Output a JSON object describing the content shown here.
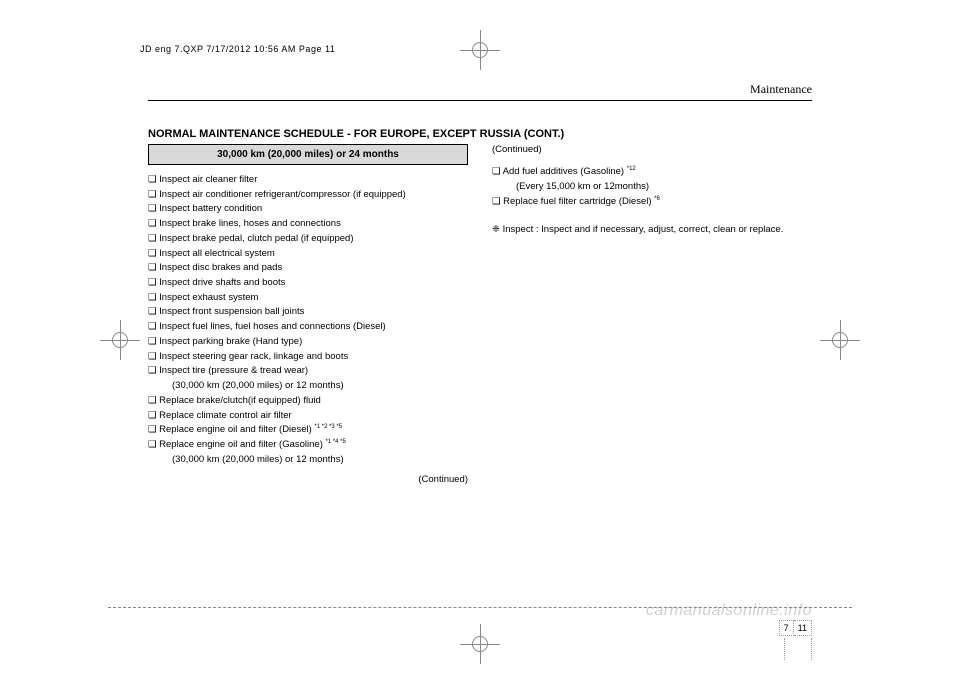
{
  "header_stamp": "JD eng 7.QXP  7/17/2012  10:56 AM  Page 11",
  "section_label": "Maintenance",
  "title": "NORMAL MAINTENANCE SCHEDULE - FOR EUROPE, EXCEPT RUSSIA (CONT.)",
  "box_header": "30,000 km (20,000 miles) or 24 months",
  "left_items": [
    "❑ Inspect air cleaner filter",
    "❑ Inspect air conditioner refrigerant/compressor (if equipped)",
    "❑ Inspect battery condition",
    "❑ Inspect brake lines, hoses and connections",
    "❑ Inspect brake pedal, clutch pedal (if equipped)",
    "❑ Inspect all electrical system",
    "❑ Inspect disc brakes and pads",
    "❑ Inspect drive shafts and boots",
    "❑ Inspect exhaust system",
    "❑ Inspect front suspension ball joints",
    "❑ Inspect fuel lines, fuel hoses and connections (Diesel)",
    "❑ Inspect parking brake (Hand type)",
    "❑ Inspect steering gear rack, linkage and boots",
    "❑ Inspect tire (pressure & tread wear)",
    "   (30,000 km (20,000 miles) or 12 months)",
    "❑ Replace brake/clutch(if equipped) fluid",
    "❑ Replace climate control air filter"
  ],
  "left_item_diesel_prefix": "❑ Replace engine oil and filter (Diesel) ",
  "left_item_diesel_sup": "*1 *2 *3 *5",
  "left_item_gasoline_prefix": "❑ Replace engine oil and filter (Gasoline) ",
  "left_item_gasoline_sup": "*1 *4 *5",
  "left_item_gasoline_sub": "   (30,000 km (20,000 miles) or 12 months)",
  "continued": "(Continued)",
  "right_item_add_prefix": "❑ Add fuel additives (Gasoline) ",
  "right_item_add_sup": "*12",
  "right_item_add_sub": "   (Every 15,000 km or 12months)",
  "right_item_replace_prefix": "❑ Replace fuel filter cartridge (Diesel) ",
  "right_item_replace_sup": "*6",
  "footnote": "❈ Inspect : Inspect and if necessary, adjust, correct, clean or replace.",
  "page_section": "7",
  "page_number": "11",
  "watermark": "carmanualsonline.info",
  "colors": {
    "box_header_bg": "#d9d9d9",
    "text": "#000000",
    "watermark": "#d0d0d0",
    "crop": "#888888"
  }
}
